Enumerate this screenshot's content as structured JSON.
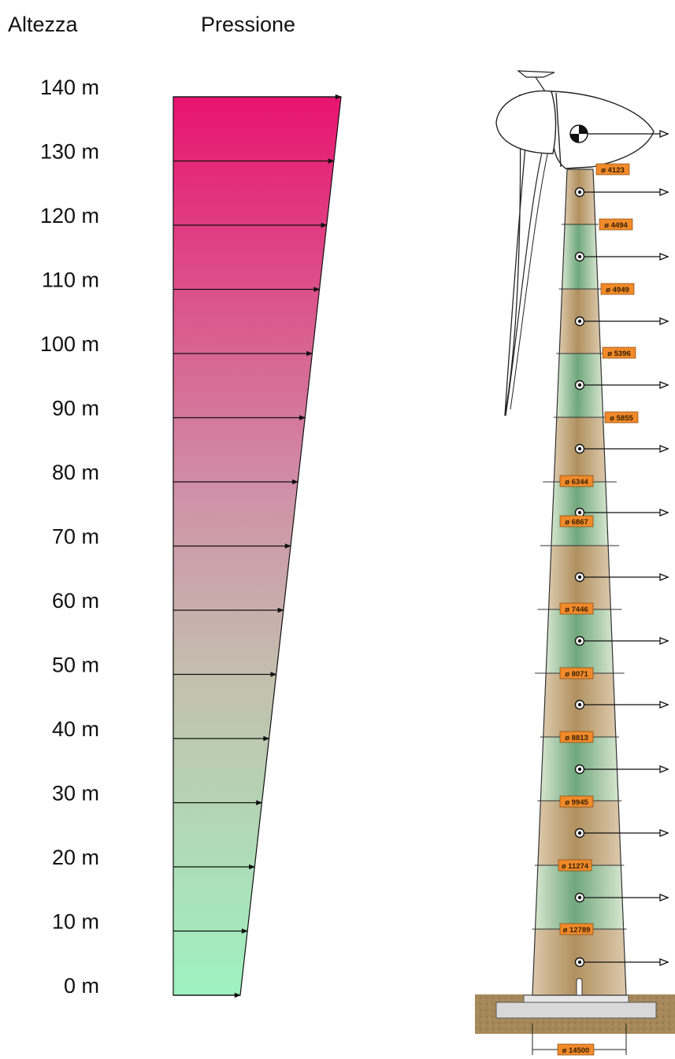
{
  "headers": {
    "height": "Altezza",
    "pressure": "Pressione"
  },
  "height_levels": [
    "140 m",
    "130 m",
    "120 m",
    "110 m",
    "100 m",
    "90 m",
    "80 m",
    "70 m",
    "60 m",
    "50 m",
    "40 m",
    "30 m",
    "20 m",
    "10 m",
    "0 m"
  ],
  "tower_diameters": [
    "ø 4123",
    "ø 4494",
    "ø 4949",
    "ø 5396",
    "ø 5855",
    "ø 6344",
    "ø 6867",
    "ø 7446",
    "ø 8071",
    "ø 8813",
    "ø 9945",
    "ø 11274",
    "ø 12789"
  ],
  "base_diameter": "ø 14500",
  "colors": {
    "pressure_top": "#e8146f",
    "pressure_bottom": "#9ef2c0",
    "tower_brown": "#b89a72",
    "tower_green": "#7fb288",
    "label_orange": "#f08a2a",
    "ground": "#a5885a"
  }
}
